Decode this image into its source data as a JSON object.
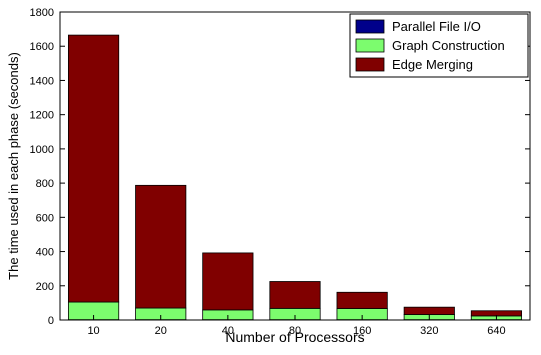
{
  "chart_data": {
    "type": "bar",
    "stacked": true,
    "categories": [
      "10",
      "20",
      "40",
      "80",
      "160",
      "320",
      "640"
    ],
    "series": [
      {
        "name": "Parallel File I/O",
        "color": "#00008b",
        "values": [
          2,
          2,
          2,
          2,
          2,
          2,
          2
        ]
      },
      {
        "name": "Graph Construction",
        "color": "#7cfc6e",
        "values": [
          103,
          68,
          57,
          66,
          65,
          30,
          22
        ]
      },
      {
        "name": "Edge Merging",
        "color": "#800000",
        "values": [
          1560,
          717,
          333,
          157,
          95,
          43,
          30
        ]
      }
    ],
    "xlabel": "Number of Processors",
    "ylabel": "The time used in each phase (seconds)",
    "ylim": [
      0,
      1800
    ],
    "yticks": [
      0,
      200,
      400,
      600,
      800,
      1000,
      1200,
      1400,
      1600,
      1800
    ],
    "grid": false,
    "legend_position": "top-right"
  }
}
